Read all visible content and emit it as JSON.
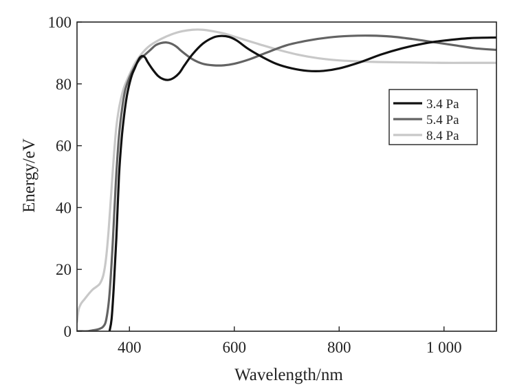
{
  "chart_data": {
    "type": "line",
    "title": "",
    "xlabel": "Wavelength/nm",
    "ylabel": "Energy/eV",
    "xlim": [
      300,
      1100
    ],
    "ylim": [
      0,
      100
    ],
    "x_ticks": [
      400,
      600,
      800,
      1000
    ],
    "x_tick_labels": [
      "400",
      "600",
      "800",
      "1 000"
    ],
    "y_ticks": [
      0,
      20,
      40,
      60,
      80,
      100
    ],
    "y_tick_labels": [
      "0",
      "20",
      "40",
      "60",
      "80",
      "100"
    ],
    "grid": false,
    "legend": {
      "position": "right"
    },
    "series": [
      {
        "name": "3.4 Pa",
        "color": "#111111",
        "points": [
          [
            362,
            0
          ],
          [
            366,
            4
          ],
          [
            370,
            14
          ],
          [
            375,
            30
          ],
          [
            380,
            50
          ],
          [
            385,
            62
          ],
          [
            390,
            70
          ],
          [
            395,
            76
          ],
          [
            400,
            80
          ],
          [
            405,
            83
          ],
          [
            410,
            85
          ],
          [
            415,
            87
          ],
          [
            420,
            88.5
          ],
          [
            425,
            89
          ],
          [
            430,
            88.5
          ],
          [
            435,
            87
          ],
          [
            445,
            84.5
          ],
          [
            455,
            82.5
          ],
          [
            465,
            81.5
          ],
          [
            475,
            81.3
          ],
          [
            485,
            82
          ],
          [
            495,
            83.5
          ],
          [
            505,
            86
          ],
          [
            520,
            89.5
          ],
          [
            540,
            93
          ],
          [
            560,
            95
          ],
          [
            575,
            95.5
          ],
          [
            590,
            95.2
          ],
          [
            605,
            94
          ],
          [
            625,
            91.5
          ],
          [
            650,
            89
          ],
          [
            680,
            86.5
          ],
          [
            710,
            85
          ],
          [
            740,
            84.2
          ],
          [
            770,
            84.2
          ],
          [
            800,
            85
          ],
          [
            840,
            87
          ],
          [
            880,
            89.5
          ],
          [
            920,
            91.5
          ],
          [
            960,
            93
          ],
          [
            1000,
            94
          ],
          [
            1050,
            94.8
          ],
          [
            1100,
            95
          ]
        ]
      },
      {
        "name": "5.4 Pa",
        "color": "#636363",
        "points": [
          [
            300,
            0
          ],
          [
            310,
            0
          ],
          [
            320,
            0
          ],
          [
            330,
            0.3
          ],
          [
            340,
            0.6
          ],
          [
            350,
            1.5
          ],
          [
            356,
            4
          ],
          [
            362,
            12
          ],
          [
            368,
            28
          ],
          [
            374,
            48
          ],
          [
            380,
            63
          ],
          [
            386,
            72
          ],
          [
            392,
            78
          ],
          [
            400,
            82
          ],
          [
            410,
            85.5
          ],
          [
            420,
            88
          ],
          [
            430,
            89.5
          ],
          [
            440,
            91
          ],
          [
            450,
            92.5
          ],
          [
            460,
            93.2
          ],
          [
            470,
            93.4
          ],
          [
            480,
            93
          ],
          [
            490,
            92
          ],
          [
            500,
            90.5
          ],
          [
            520,
            88
          ],
          [
            540,
            86.5
          ],
          [
            560,
            86
          ],
          [
            580,
            86
          ],
          [
            600,
            86.5
          ],
          [
            630,
            88
          ],
          [
            660,
            90
          ],
          [
            700,
            92.5
          ],
          [
            740,
            94
          ],
          [
            780,
            95
          ],
          [
            820,
            95.5
          ],
          [
            860,
            95.6
          ],
          [
            900,
            95.3
          ],
          [
            940,
            94.5
          ],
          [
            980,
            93.5
          ],
          [
            1020,
            92.5
          ],
          [
            1060,
            91.5
          ],
          [
            1100,
            91
          ]
        ]
      },
      {
        "name": "8.4 Pa",
        "color": "#c8c8c8",
        "points": [
          [
            300,
            3
          ],
          [
            303,
            7
          ],
          [
            308,
            9
          ],
          [
            315,
            10.5
          ],
          [
            322,
            12
          ],
          [
            330,
            13.5
          ],
          [
            338,
            14.5
          ],
          [
            344,
            15.5
          ],
          [
            350,
            18
          ],
          [
            355,
            23
          ],
          [
            360,
            32
          ],
          [
            365,
            44
          ],
          [
            370,
            56
          ],
          [
            375,
            66
          ],
          [
            380,
            72
          ],
          [
            385,
            76
          ],
          [
            390,
            79
          ],
          [
            400,
            83
          ],
          [
            410,
            86.5
          ],
          [
            420,
            89
          ],
          [
            430,
            91
          ],
          [
            440,
            92.5
          ],
          [
            460,
            94.5
          ],
          [
            480,
            96
          ],
          [
            500,
            97
          ],
          [
            520,
            97.5
          ],
          [
            540,
            97.5
          ],
          [
            560,
            97
          ],
          [
            580,
            96.3
          ],
          [
            600,
            95.3
          ],
          [
            640,
            93.2
          ],
          [
            680,
            91.2
          ],
          [
            720,
            89.5
          ],
          [
            760,
            88.3
          ],
          [
            800,
            87.6
          ],
          [
            850,
            87.2
          ],
          [
            900,
            87
          ],
          [
            950,
            86.9
          ],
          [
            1000,
            86.8
          ],
          [
            1050,
            86.8
          ],
          [
            1100,
            86.8
          ]
        ]
      }
    ]
  }
}
